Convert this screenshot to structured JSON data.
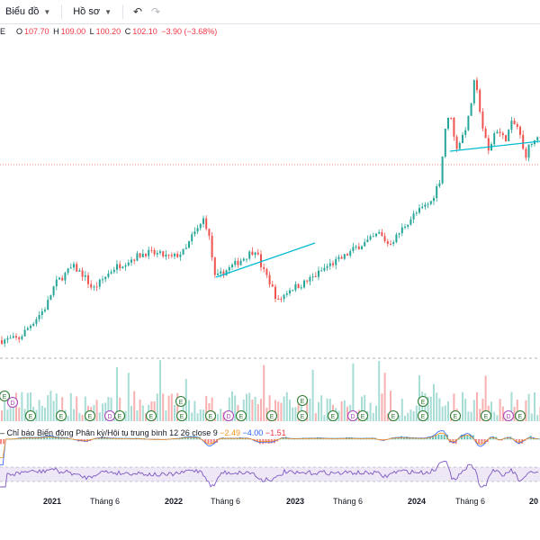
{
  "toolbar": {
    "chart_menu": "Biểu đồ",
    "profile_menu": "Hồ sơ",
    "undo_icon": "undo-icon",
    "redo_icon": "redo-icon"
  },
  "symbol_fragment": "E",
  "ohlc": {
    "o_label": "O",
    "o_value": "107.70",
    "h_label": "H",
    "h_value": "109.00",
    "l_label": "L",
    "l_value": "100.20",
    "c_label": "C",
    "c_value": "102.10",
    "change": "−3.90 (−3.68%)"
  },
  "macd": {
    "label": "Chỉ báo Biến động Phân kỳ/Hội tụ trung bình",
    "params": "12 26 close 9",
    "v1": "−2.49",
    "v2": "−4.00",
    "v3": "−1.51"
  },
  "event_markers": {
    "dividend_letter": "D",
    "earnings_letter": "E"
  },
  "x_axis": {
    "labels": [
      "2021",
      "Tháng 6",
      "2022",
      "Tháng 6",
      "2023",
      "Tháng 6",
      "2024",
      "Tháng 6",
      "20"
    ]
  },
  "colors": {
    "up": "#26a69a",
    "down": "#ef5350",
    "trendline": "#00bcd4",
    "rsi": "#7e57c2"
  },
  "chart_data": {
    "type": "candlestick",
    "x_ticks": [
      "2021",
      "Tháng 6",
      "2022",
      "Tháng 6",
      "2023",
      "Tháng 6",
      "2024",
      "Tháng 6",
      "20"
    ],
    "anchors": [
      [
        0,
        21
      ],
      [
        20,
        22
      ],
      [
        40,
        34
      ],
      [
        50,
        40
      ],
      [
        60,
        53
      ],
      [
        70,
        58
      ],
      [
        80,
        63
      ],
      [
        92,
        58
      ],
      [
        102,
        50
      ],
      [
        112,
        55
      ],
      [
        125,
        62
      ],
      [
        140,
        66
      ],
      [
        160,
        71
      ],
      [
        175,
        70
      ],
      [
        190,
        68
      ],
      [
        205,
        72
      ],
      [
        212,
        80
      ],
      [
        220,
        85
      ],
      [
        226,
        91
      ],
      [
        232,
        78
      ],
      [
        238,
        56
      ],
      [
        248,
        60
      ],
      [
        262,
        65
      ],
      [
        275,
        70
      ],
      [
        283,
        73
      ],
      [
        290,
        62
      ],
      [
        297,
        56
      ],
      [
        308,
        43
      ],
      [
        320,
        50
      ],
      [
        335,
        53
      ],
      [
        350,
        58
      ],
      [
        362,
        63
      ],
      [
        380,
        68
      ],
      [
        395,
        74
      ],
      [
        410,
        78
      ],
      [
        420,
        82
      ],
      [
        430,
        76
      ],
      [
        438,
        79
      ],
      [
        448,
        86
      ],
      [
        458,
        92
      ],
      [
        468,
        96
      ],
      [
        478,
        100
      ],
      [
        488,
        113
      ],
      [
        494,
        143
      ],
      [
        500,
        150
      ],
      [
        505,
        130
      ],
      [
        512,
        136
      ],
      [
        520,
        148
      ],
      [
        526,
        168
      ],
      [
        530,
        160
      ],
      [
        536,
        140
      ],
      [
        542,
        128
      ],
      [
        550,
        142
      ],
      [
        560,
        135
      ],
      [
        568,
        145
      ],
      [
        575,
        142
      ],
      [
        582,
        125
      ],
      [
        588,
        133
      ],
      [
        600,
        136
      ]
    ]
  }
}
